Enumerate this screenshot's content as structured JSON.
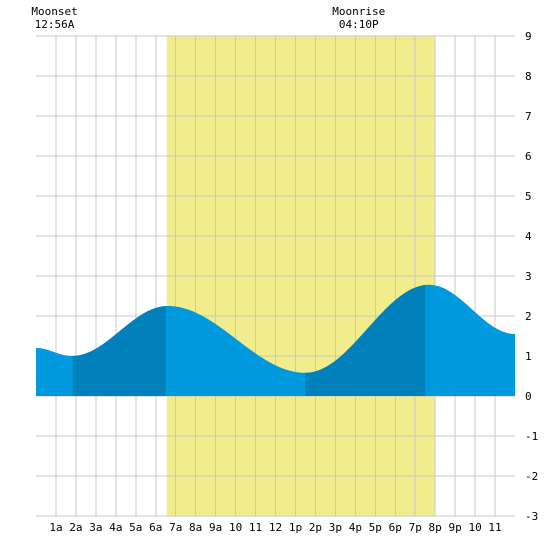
{
  "chart_data": {
    "type": "area",
    "title": "",
    "xlabel": "",
    "ylabel": "",
    "x_range_hours": [
      0.0,
      24.0
    ],
    "ylim": [
      -3,
      9
    ],
    "y_ticks": [
      9,
      8,
      7,
      6,
      5,
      4,
      3,
      2,
      1,
      0,
      -1,
      -2,
      -3
    ],
    "x_ticks": [
      {
        "hour": 1,
        "label": "1a"
      },
      {
        "hour": 2,
        "label": "2a"
      },
      {
        "hour": 3,
        "label": "3a"
      },
      {
        "hour": 4,
        "label": "4a"
      },
      {
        "hour": 5,
        "label": "5a"
      },
      {
        "hour": 6,
        "label": "6a"
      },
      {
        "hour": 7,
        "label": "7a"
      },
      {
        "hour": 8,
        "label": "8a"
      },
      {
        "hour": 9,
        "label": "9a"
      },
      {
        "hour": 10,
        "label": "10"
      },
      {
        "hour": 11,
        "label": "11"
      },
      {
        "hour": 12,
        "label": "12"
      },
      {
        "hour": 13,
        "label": "1p"
      },
      {
        "hour": 14,
        "label": "2p"
      },
      {
        "hour": 15,
        "label": "3p"
      },
      {
        "hour": 16,
        "label": "4p"
      },
      {
        "hour": 17,
        "label": "5p"
      },
      {
        "hour": 18,
        "label": "6p"
      },
      {
        "hour": 19,
        "label": "7p"
      },
      {
        "hour": 20,
        "label": "8p"
      },
      {
        "hour": 21,
        "label": "9p"
      },
      {
        "hour": 22,
        "label": "10"
      },
      {
        "hour": 23,
        "label": "11"
      }
    ],
    "daylight": {
      "start_hour": 6.55,
      "end_hour": 20.0
    },
    "tide_extremes": [
      {
        "hour": 1.8,
        "height": 1.0,
        "kind": "low"
      },
      {
        "hour": 6.6,
        "height": 2.25,
        "kind": "high"
      },
      {
        "hour": 13.5,
        "height": 0.58,
        "kind": "low"
      },
      {
        "hour": 19.7,
        "height": 2.78,
        "kind": "high"
      }
    ],
    "boundary_heights": {
      "start": 1.2,
      "end": 1.55
    },
    "highlight_bands": [
      [
        1.85,
        6.5
      ],
      [
        13.5,
        19.5
      ]
    ],
    "colors": {
      "daylight": "#f2ed8c",
      "tide": "#0099dd",
      "tide_highlight": "#0081bb",
      "grid": "#c8c8c8"
    }
  },
  "annotations": {
    "moonset": {
      "title": "Moonset",
      "time": "12:56A",
      "hour": 0.93
    },
    "moonrise": {
      "title": "Moonrise",
      "time": "04:10P",
      "hour": 16.17
    }
  }
}
